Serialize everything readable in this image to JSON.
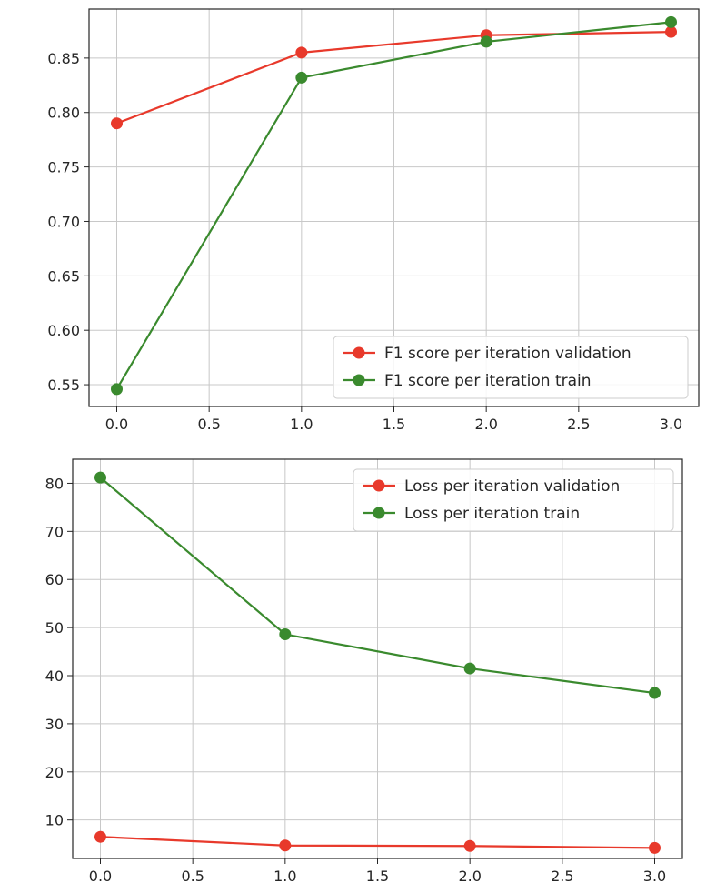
{
  "colors": {
    "validation": "#e8392b",
    "train": "#3a8a2e",
    "grid": "#c8c8c8",
    "axes": "#262626",
    "legend_border": "#cccccc"
  },
  "chart_data": [
    {
      "type": "line",
      "title": "",
      "xlabel": "",
      "ylabel": "",
      "x": [
        0,
        1,
        2,
        3
      ],
      "xlim": [
        -0.15,
        3.15
      ],
      "ylim": [
        0.53,
        0.895
      ],
      "xticks": [
        0.0,
        0.5,
        1.0,
        1.5,
        2.0,
        2.5,
        3.0
      ],
      "xtick_labels": [
        "0.0",
        "0.5",
        "1.0",
        "1.5",
        "2.0",
        "2.5",
        "3.0"
      ],
      "yticks": [
        0.55,
        0.6,
        0.65,
        0.7,
        0.75,
        0.8,
        0.85
      ],
      "ytick_labels": [
        "0.55",
        "0.60",
        "0.65",
        "0.70",
        "0.75",
        "0.80",
        "0.85"
      ],
      "grid": true,
      "legend_position": "lower-right",
      "series": [
        {
          "name": "F1 score per iteration validation",
          "color_key": "validation",
          "values": [
            0.79,
            0.855,
            0.871,
            0.874
          ]
        },
        {
          "name": "F1 score per iteration train",
          "color_key": "train",
          "values": [
            0.546,
            0.832,
            0.865,
            0.883
          ]
        }
      ]
    },
    {
      "type": "line",
      "title": "",
      "xlabel": "",
      "ylabel": "",
      "x": [
        0,
        1,
        2,
        3
      ],
      "xlim": [
        -0.15,
        3.15
      ],
      "ylim": [
        2.0,
        85.0
      ],
      "xticks": [
        0.0,
        0.5,
        1.0,
        1.5,
        2.0,
        2.5,
        3.0
      ],
      "xtick_labels": [
        "0.0",
        "0.5",
        "1.0",
        "1.5",
        "2.0",
        "2.5",
        "3.0"
      ],
      "yticks": [
        10,
        20,
        30,
        40,
        50,
        60,
        70,
        80
      ],
      "ytick_labels": [
        "10",
        "20",
        "30",
        "40",
        "50",
        "60",
        "70",
        "80"
      ],
      "grid": true,
      "legend_position": "upper-right",
      "series": [
        {
          "name": "Loss per iteration validation",
          "color_key": "validation",
          "values": [
            6.5,
            4.7,
            4.6,
            4.2
          ]
        },
        {
          "name": "Loss per iteration train",
          "color_key": "train",
          "values": [
            81.2,
            48.6,
            41.5,
            36.4
          ]
        }
      ]
    }
  ]
}
